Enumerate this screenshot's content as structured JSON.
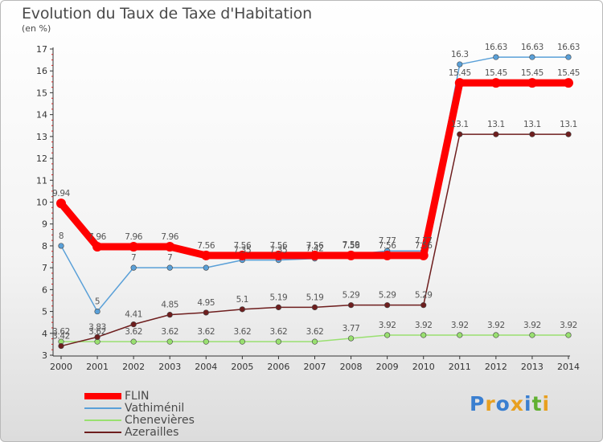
{
  "title": "Evolution du Taux de Taxe d'Habitation",
  "subtitle": "(en %)",
  "logo": "Proxiti",
  "colors": {
    "FLIN": "#ff0000",
    "Vathiménil": "#5aa0d8",
    "Chenevières": "#99e070",
    "Azerailles": "#6e1e1e",
    "axis": "#333333",
    "minor_tick": "#d02020"
  },
  "chart_data": {
    "type": "line",
    "title": "Evolution du Taux de Taxe d'Habitation",
    "ylabel": "(en %)",
    "xlabel": "",
    "x": [
      2000,
      2001,
      2002,
      2003,
      2004,
      2005,
      2006,
      2007,
      2008,
      2009,
      2010,
      2011,
      2012,
      2013,
      2014
    ],
    "ylim": [
      3,
      17
    ],
    "yticks": [
      3,
      4,
      5,
      6,
      7,
      8,
      9,
      10,
      11,
      12,
      13,
      14,
      15,
      16,
      17
    ],
    "grid": false,
    "legend_position": "bottom-left",
    "series": [
      {
        "name": "FLIN",
        "values": [
          9.94,
          7.96,
          7.96,
          7.96,
          7.56,
          7.56,
          7.56,
          7.56,
          7.56,
          7.56,
          7.56,
          15.45,
          15.45,
          15.45,
          15.45
        ]
      },
      {
        "name": "Vathiménil",
        "values": [
          8,
          5,
          7,
          7,
          7,
          7.35,
          7.35,
          7.42,
          7.59,
          7.77,
          7.77,
          16.3,
          16.63,
          16.63,
          16.63
        ]
      },
      {
        "name": "Chenevières",
        "values": [
          3.62,
          3.62,
          3.62,
          3.62,
          3.62,
          3.62,
          3.62,
          3.62,
          3.77,
          3.92,
          3.92,
          3.92,
          3.92,
          3.92,
          3.92
        ]
      },
      {
        "name": "Azerailles",
        "values": [
          3.42,
          3.83,
          4.41,
          4.85,
          4.95,
          5.1,
          5.19,
          5.19,
          5.29,
          5.29,
          5.29,
          13.1,
          13.1,
          13.1,
          13.1
        ]
      }
    ],
    "data_labels": {
      "FLIN": [
        "9.94",
        "7.96",
        "7.96",
        "7.96",
        "7.56",
        "7.56",
        "7.56",
        "7.56",
        "7.56",
        "7.56",
        "7.56",
        "15.45",
        "15.45",
        "15.45",
        "15.45"
      ],
      "Vathiménil": [
        "8",
        "5",
        "7",
        "7",
        "",
        "7.35",
        "7.35",
        "7.42",
        "7.59",
        "7.77",
        "7.77",
        "16.3",
        "16.63",
        "16.63",
        "16.63"
      ],
      "Chenevières": [
        "3.62",
        "3.62",
        "3.62",
        "3.62",
        "3.62",
        "3.62",
        "3.62",
        "3.62",
        "3.77",
        "3.92",
        "3.92",
        "3.92",
        "3.92",
        "3.92",
        "3.92"
      ],
      "Azerailles": [
        "3.42",
        "3.83",
        "4.41",
        "4.85",
        "4.95",
        "5.1",
        "5.19",
        "5.19",
        "5.29",
        "5.29",
        "5.29",
        "13.1",
        "13.1",
        "13.1",
        "13.1"
      ]
    }
  },
  "legend": [
    "FLIN",
    "Vathiménil",
    "Chenevières",
    "Azerailles"
  ]
}
